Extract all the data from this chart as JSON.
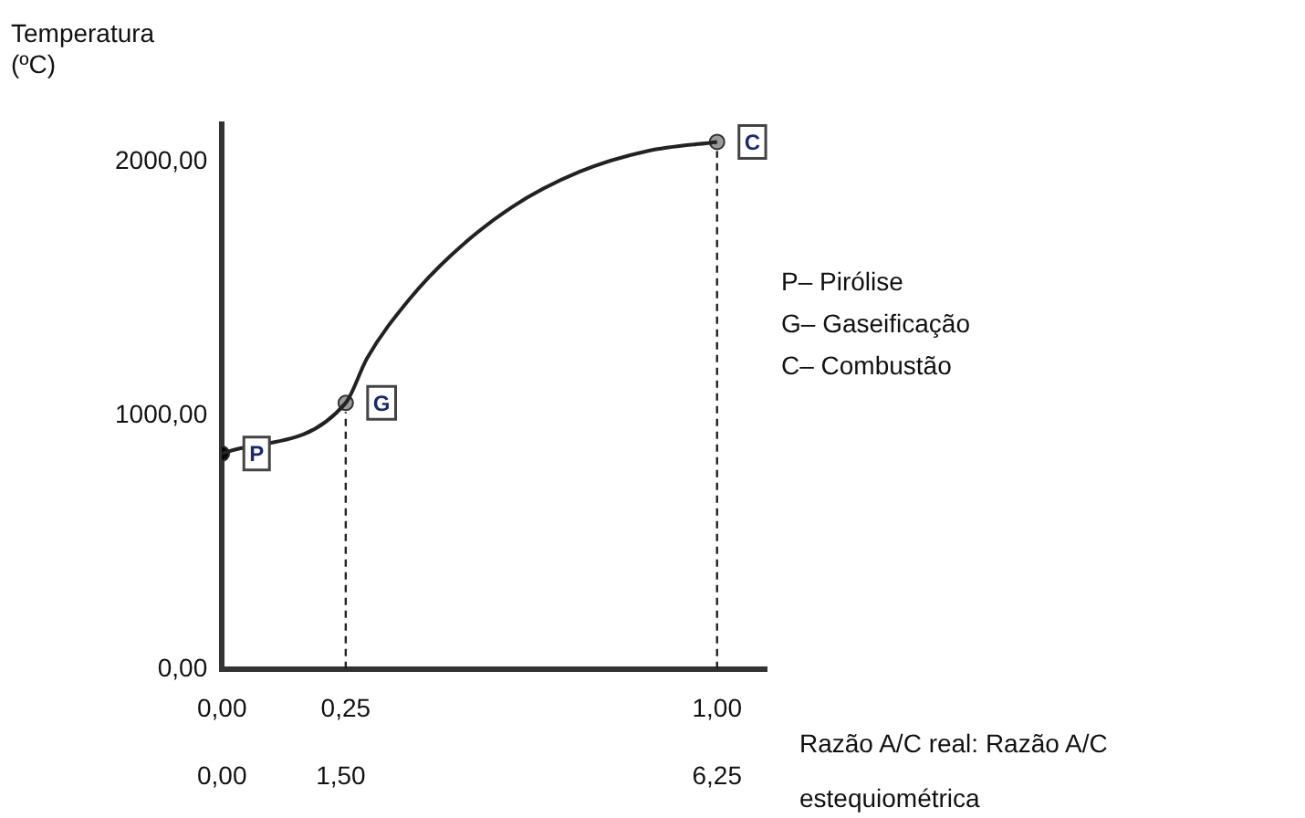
{
  "chart_data": {
    "type": "line",
    "ylabel": "Temperatura\n(ºC)",
    "xlabel": "Razão A/C real: Razão A/C estequiométrica",
    "xlim": [
      0,
      1.1
    ],
    "xticks": [
      {
        "value": 0,
        "label": "0,00"
      },
      {
        "value": 0.25,
        "label": "0,25"
      },
      {
        "value": 1,
        "label": "1,00"
      }
    ],
    "x2lim": [
      0,
      6.875
    ],
    "x2ticks": [
      {
        "value": 0,
        "label": "0,00"
      },
      {
        "value": 1.5,
        "label": "1,50"
      },
      {
        "value": 6.25,
        "label": "6,25"
      }
    ],
    "ylim": [
      0,
      2150
    ],
    "yticks": [
      {
        "value": 0,
        "label": "0,00"
      },
      {
        "value": 1000,
        "label": "1000,00"
      },
      {
        "value": 2000,
        "label": "2000,00"
      }
    ],
    "series": [
      {
        "type": "line",
        "color": "#222222",
        "marker": "none",
        "x": [
          0,
          0.25,
          0.293,
          0.379,
          0.464,
          0.585,
          0.722,
          0.859,
          1
        ],
        "values": [
          850,
          1050,
          1226,
          1460,
          1635,
          1822,
          1962,
          2044,
          2080
        ]
      },
      {
        "type": "scatter",
        "marker": "circle",
        "colors": [
          "#000000",
          "#9a9a9a",
          "#9a9a9a"
        ],
        "x": [
          0,
          0.25,
          1
        ],
        "values": [
          850,
          1050,
          2080
        ]
      }
    ],
    "ref_lines": [
      {
        "axis": "x",
        "value": 0.25,
        "line_style": "dashed",
        "color": "#222222"
      },
      {
        "axis": "x",
        "value": 1,
        "line_style": "dashed",
        "color": "#222222"
      }
    ],
    "annotations": [
      {
        "text": "P",
        "x": 0,
        "y": 850
      },
      {
        "text": "G",
        "x": 0.25,
        "y": 1050
      },
      {
        "text": "C",
        "x": 1,
        "y": 2080
      },
      "P– Pirólise",
      "G– Gaseificação",
      "C– Combustão"
    ],
    "grid": false,
    "legend": false
  }
}
